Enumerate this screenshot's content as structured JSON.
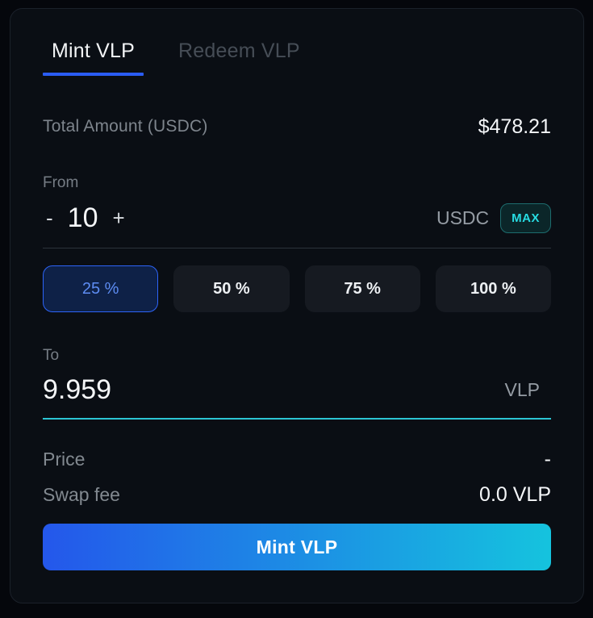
{
  "tabs": [
    {
      "label": "Mint VLP",
      "active": true
    },
    {
      "label": "Redeem VLP",
      "active": false
    }
  ],
  "total_amount": {
    "label": "Total Amount (USDC)",
    "value": "$478.21"
  },
  "from": {
    "label": "From",
    "decrement": "-",
    "amount": "10",
    "increment": "+",
    "token": "USDC",
    "max_label": "MAX"
  },
  "percent_options": [
    {
      "label": "25 %",
      "selected": true
    },
    {
      "label": "50 %",
      "selected": false
    },
    {
      "label": "75 %",
      "selected": false
    },
    {
      "label": "100 %",
      "selected": false
    }
  ],
  "to": {
    "label": "To",
    "amount": "9.959",
    "token": "VLP"
  },
  "details": [
    {
      "label": "Price",
      "value": "-"
    },
    {
      "label": "Swap fee",
      "value": "0.0 VLP"
    }
  ],
  "submit": {
    "label": "Mint VLP"
  },
  "colors": {
    "page_background": "#05070c",
    "card_background": "#0a0e14",
    "card_border": "#1b212a",
    "accent_blue": "#2a5cf4",
    "selected_percent_background": "#0e2147",
    "selected_percent_text": "#5d8cf2",
    "teal_accent": "#2cc5d4",
    "max_text": "#27dce2",
    "max_border": "#1d6c6e",
    "submit_gradient_start": "#2457eb",
    "submit_gradient_end": "#15c3de",
    "muted_text": "#7e858d",
    "primary_text": "#f4f6f8"
  }
}
